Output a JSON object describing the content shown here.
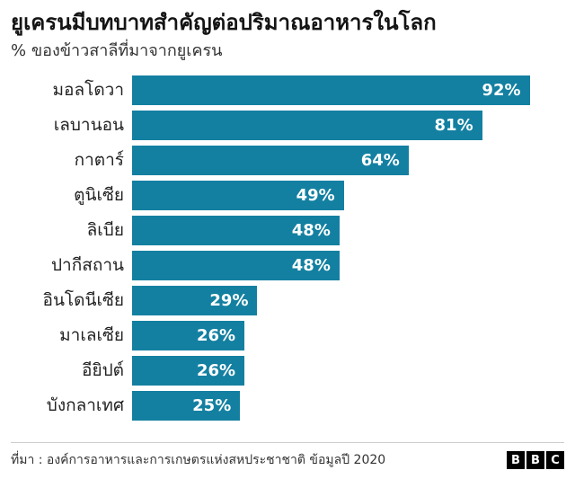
{
  "header": {
    "title": "ยูเครนมีบทบาทสำคัญต่อปริมาณอาหารในโลก",
    "subtitle": "% ของข้าวสาลีที่มาจากยูเครน"
  },
  "footer": {
    "source": "ที่มา : องค์การอาหารและการเกษตรแห่งสหประชาชาติ ข้อมูลปี 2020",
    "logo_letters": [
      "B",
      "B",
      "C"
    ]
  },
  "colors": {
    "bar": "#1380A1",
    "value_text": "#ffffff",
    "title_text": "#141414",
    "label_text": "#222222",
    "divider": "#cccccc"
  },
  "chart_data": {
    "type": "bar",
    "orientation": "horizontal",
    "title": "ยูเครนมีบทบาทสำคัญต่อปริมาณอาหารในโลก",
    "subtitle": "% ของข้าวสาลีที่มาจากยูเครน",
    "categories": [
      "มอลโดวา",
      "เลบานอน",
      "กาตาร์",
      "ตูนิเซีย",
      "ลิเบีย",
      "ปากีสถาน",
      "อินโดนีเซีย",
      "มาเลเซีย",
      "อียิปต์",
      "บังกลาเทศ"
    ],
    "values": [
      92,
      81,
      64,
      49,
      48,
      48,
      29,
      26,
      26,
      25
    ],
    "value_suffix": "%",
    "xlim": [
      0,
      100
    ],
    "grid": false,
    "legend": "none"
  }
}
